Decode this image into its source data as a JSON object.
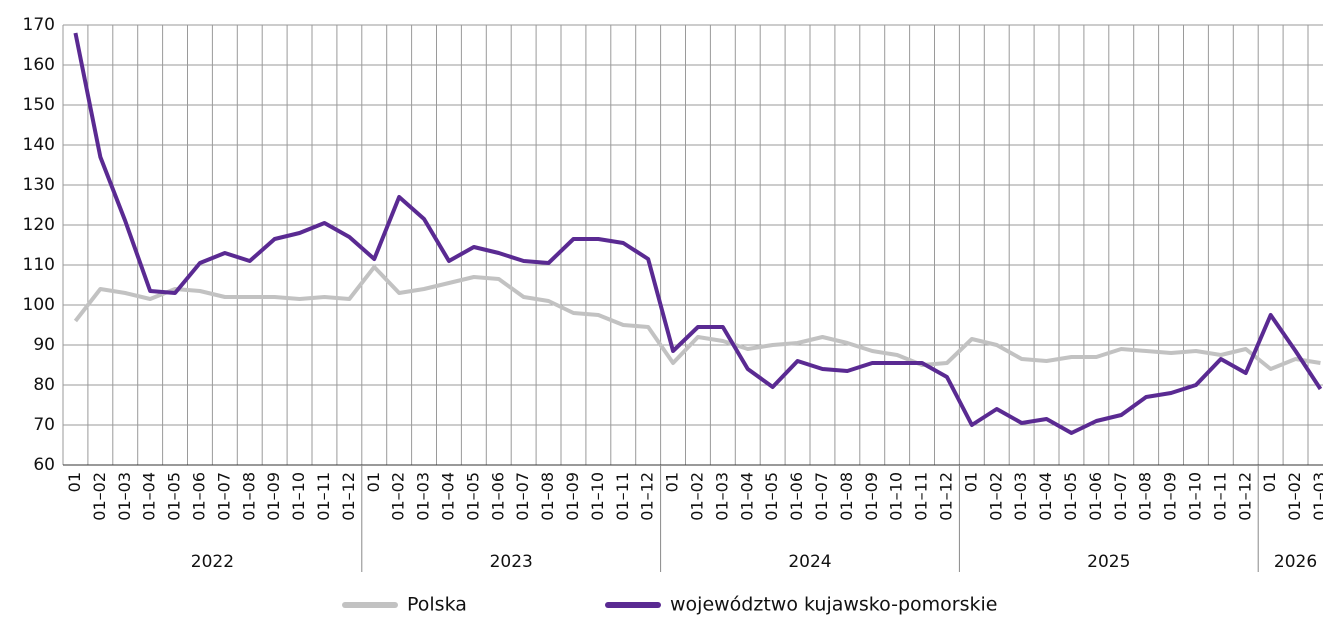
{
  "chart_data": {
    "type": "line",
    "categories": [
      "01",
      "01–02",
      "01–03",
      "01–04",
      "01–05",
      "01–06",
      "01–07",
      "01–08",
      "01–09",
      "01–10",
      "01–11",
      "01–12",
      "01",
      "01–02",
      "01–03",
      "01–04",
      "01–05",
      "01–06",
      "01–07",
      "01–08",
      "01–09",
      "01–10",
      "01–11",
      "01–12",
      "01",
      "01–02",
      "01–03",
      "01–04",
      "01–05",
      "01–06",
      "01–07",
      "01–08",
      "01–09",
      "01–10",
      "01–11",
      "01–12",
      "01",
      "01–02",
      "01–03",
      "01–04",
      "01–05",
      "01–06",
      "01–07",
      "01–08",
      "01–09",
      "01–10",
      "01–11",
      "01–12",
      "01",
      "01–02",
      "01–03"
    ],
    "groups": [
      "2022",
      "2023",
      "2024",
      "2025",
      "2026"
    ],
    "series": [
      {
        "name": "Polska",
        "color": "#c2c2c2",
        "values": [
          96,
          104,
          103,
          101.5,
          104,
          103.5,
          102,
          102,
          102,
          101.5,
          102,
          101.5,
          109.5,
          103,
          104,
          105.5,
          107,
          106.5,
          102,
          101,
          98,
          97.5,
          95,
          94.5,
          85.5,
          92,
          91,
          89,
          90,
          90.5,
          92,
          90.5,
          88.5,
          87.5,
          85,
          85.5,
          91.5,
          90,
          86.5,
          86,
          87,
          87,
          89,
          88.5,
          88,
          88.5,
          87.5,
          89,
          84,
          86.5,
          85.5
        ]
      },
      {
        "name": "województwo kujawsko-pomorskie",
        "color": "#5a2a92",
        "values": [
          168,
          137,
          121,
          103.5,
          103,
          110.5,
          113,
          111,
          116.5,
          118,
          120.5,
          117,
          111.5,
          127,
          121.5,
          111,
          114.5,
          113,
          111,
          110.5,
          116.5,
          116.5,
          115.5,
          111.5,
          88.5,
          94.5,
          94.5,
          84,
          79.5,
          86,
          84,
          83.5,
          85.5,
          85.5,
          85.5,
          82,
          70,
          74,
          70.5,
          71.5,
          68,
          71,
          72.5,
          77,
          78,
          80,
          86.5,
          83,
          97.5,
          88.5,
          79
        ]
      }
    ],
    "ylim": [
      60,
      170
    ],
    "yticks": [
      60,
      70,
      80,
      90,
      100,
      110,
      120,
      130,
      140,
      150,
      160,
      170
    ],
    "grid": true,
    "legend": "bottom"
  }
}
